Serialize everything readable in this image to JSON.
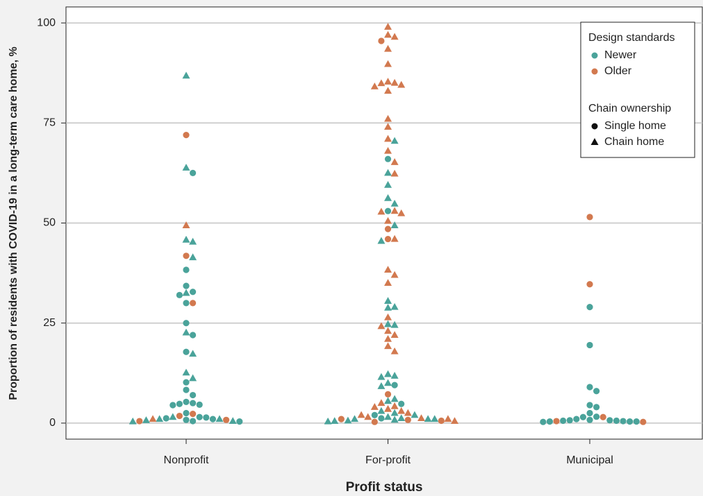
{
  "chart_data": {
    "type": "beeswarm",
    "y_label": "Proportion of residents with COVID-19 in a long-term care home, %",
    "x_label": "Profit status",
    "categories": [
      "Nonprofit",
      "For-profit",
      "Municipal"
    ],
    "ylim": [
      -4,
      104
    ],
    "yticks": [
      0,
      25,
      50,
      75,
      100
    ],
    "grid": true,
    "legend_position": "upper right",
    "color_legend_title": "Design standards",
    "shape_legend": {
      "title": "Chain ownership",
      "single": "Single home",
      "chain": "Chain home"
    },
    "series": [
      {
        "name": "Newer",
        "color": "#4aa39a",
        "single": [
          [
            62.5,
            38.3,
            34.3,
            32.8,
            32,
            30,
            25,
            22,
            17.8,
            10.2,
            8.3,
            7,
            5.3,
            5,
            4.6,
            4.5,
            4.8,
            2.5,
            1.5,
            1.4,
            1,
            0.8,
            0.5,
            0.4,
            1.2
          ],
          [
            66,
            53,
            9.5,
            4.8,
            2,
            1.2
          ],
          [
            29,
            19.5,
            9,
            8,
            4.5,
            4,
            2.5,
            1.6,
            1.5,
            1,
            0.8,
            0.7,
            0.6,
            0.5,
            0.4,
            0.4,
            0.4,
            0.3,
            0.6,
            0.7
          ]
        ],
        "chain": [
          [
            86.8,
            63.8,
            45.8,
            45.3,
            41.4,
            32.5,
            22.6,
            17.3,
            12.6,
            11.2,
            0.5,
            1,
            1.5,
            1,
            0.7,
            0.4
          ],
          [
            70.5,
            62.5,
            59.5,
            56.2,
            54.8,
            49.4,
            45.5,
            30.5,
            29,
            28.8,
            24.7,
            24.5,
            12.2,
            11.5,
            11.8,
            10,
            9.2,
            6,
            5.5,
            3,
            2.5,
            2,
            1.5,
            1.2,
            1,
            1,
            1,
            0.8,
            0.6,
            0.5,
            0.4
          ],
          []
        ]
      },
      {
        "name": "Older",
        "color": "#d2794f",
        "single": [
          [
            72,
            41.8,
            30,
            2.3,
            1.8,
            0.8,
            0.5
          ],
          [
            95.5,
            48.5,
            46,
            7.2,
            1,
            0.8,
            0.6,
            0.3
          ],
          [
            51.5,
            34.7,
            1.5,
            0.5,
            0.3
          ]
        ],
        "chain": [
          [
            49.4,
            1
          ],
          [
            99,
            97,
            96.5,
            93.5,
            89.7,
            85.3,
            85,
            84.9,
            84.5,
            84.1,
            83,
            76,
            74,
            71,
            68,
            65.2,
            62.3,
            52.8,
            52.4,
            53,
            50.5,
            46,
            38.3,
            37,
            35,
            26.4,
            24.2,
            23,
            22,
            21,
            19.2,
            17.9,
            5,
            4.2,
            4,
            3.5,
            3,
            2.5,
            2,
            1.5,
            1.2,
            1,
            0.5
          ],
          []
        ]
      }
    ]
  }
}
